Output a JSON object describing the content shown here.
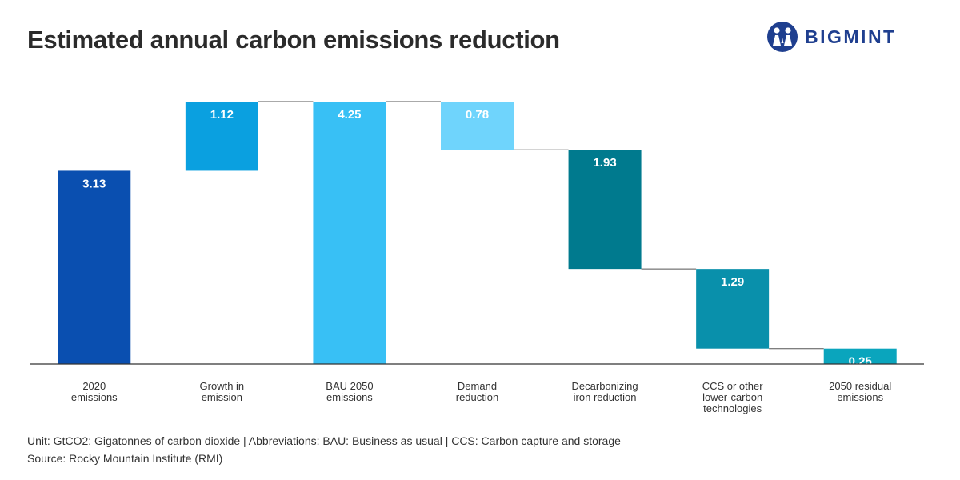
{
  "header": {
    "title": "Estimated annual carbon emissions reduction",
    "logo_text": "BIGMINT",
    "logo_icon": "bigmint-people-logo-icon"
  },
  "footer": {
    "unit_note": "Unit: GtCO2: Gigatonnes of carbon dioxide | Abbreviations: BAU: Business as usual | CCS: Carbon capture and storage",
    "source": "Source: Rocky Mountain Institute (RMI)"
  },
  "colors": {
    "brand": "#1f3f8f",
    "connector": "#555555",
    "axis": "#333333"
  },
  "chart_data": {
    "type": "bar",
    "subtype": "waterfall",
    "title": "Estimated annual carbon emissions reduction",
    "unit": "GtCO2",
    "categories": [
      [
        "2020",
        "emissions"
      ],
      [
        "Growth in",
        "emission"
      ],
      [
        "BAU 2050",
        "emissions"
      ],
      [
        "Demand",
        "reduction"
      ],
      [
        "Decarbonizing",
        "iron reduction"
      ],
      [
        "CCS or other",
        "lower-carbon",
        "technologies"
      ],
      [
        "2050 residual",
        "emissions"
      ]
    ],
    "bars": [
      {
        "base": 0,
        "top": 3.13,
        "value": "3.13",
        "color": "#0a4fb0"
      },
      {
        "base": 3.13,
        "top": 4.25,
        "value": "1.12",
        "color": "#0aa0e0"
      },
      {
        "base": 0,
        "top": 4.25,
        "value": "4.25",
        "color": "#38c0f5"
      },
      {
        "base": 3.47,
        "top": 4.25,
        "value": "0.78",
        "color": "#6fd4fc"
      },
      {
        "base": 1.54,
        "top": 3.47,
        "value": "1.93",
        "color": "#007a8e"
      },
      {
        "base": 0.25,
        "top": 1.54,
        "value": "1.29",
        "color": "#0990ab"
      },
      {
        "base": 0,
        "top": 0.25,
        "value": "0.25",
        "color": "#0aa5bd"
      }
    ],
    "ylim": [
      0,
      4.25
    ],
    "grid": false,
    "legend": "none"
  }
}
